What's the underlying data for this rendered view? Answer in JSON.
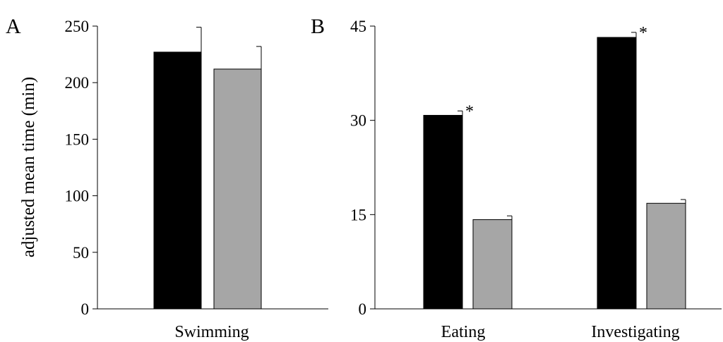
{
  "chart_data": [
    {
      "type": "bar",
      "panel_label": "A",
      "ylabel": "adjusted mean time (min)",
      "ylim": [
        0,
        250
      ],
      "yticks": [
        0,
        50,
        100,
        150,
        200,
        250
      ],
      "categories": [
        "Swimming"
      ],
      "series": [
        {
          "color": "#000000",
          "values": [
            227
          ],
          "errors": [
            22
          ]
        },
        {
          "color": "#a6a6a6",
          "values": [
            212
          ],
          "errors": [
            20
          ]
        }
      ],
      "annotations": [],
      "legend": "none",
      "grid": false
    },
    {
      "type": "bar",
      "panel_label": "B",
      "ylabel": "",
      "ylim": [
        0,
        45
      ],
      "yticks": [
        0,
        15,
        30,
        45
      ],
      "categories": [
        "Eating",
        "Investigating"
      ],
      "series": [
        {
          "color": "#000000",
          "values": [
            30.8,
            43.2
          ],
          "errors": [
            0.7,
            0.8
          ]
        },
        {
          "color": "#a6a6a6",
          "values": [
            14.2,
            16.8
          ],
          "errors": [
            0.6,
            0.6
          ]
        }
      ],
      "annotations": [
        {
          "category": "Eating",
          "text": "*"
        },
        {
          "category": "Investigating",
          "text": "*"
        }
      ],
      "legend": "none",
      "grid": false
    }
  ]
}
